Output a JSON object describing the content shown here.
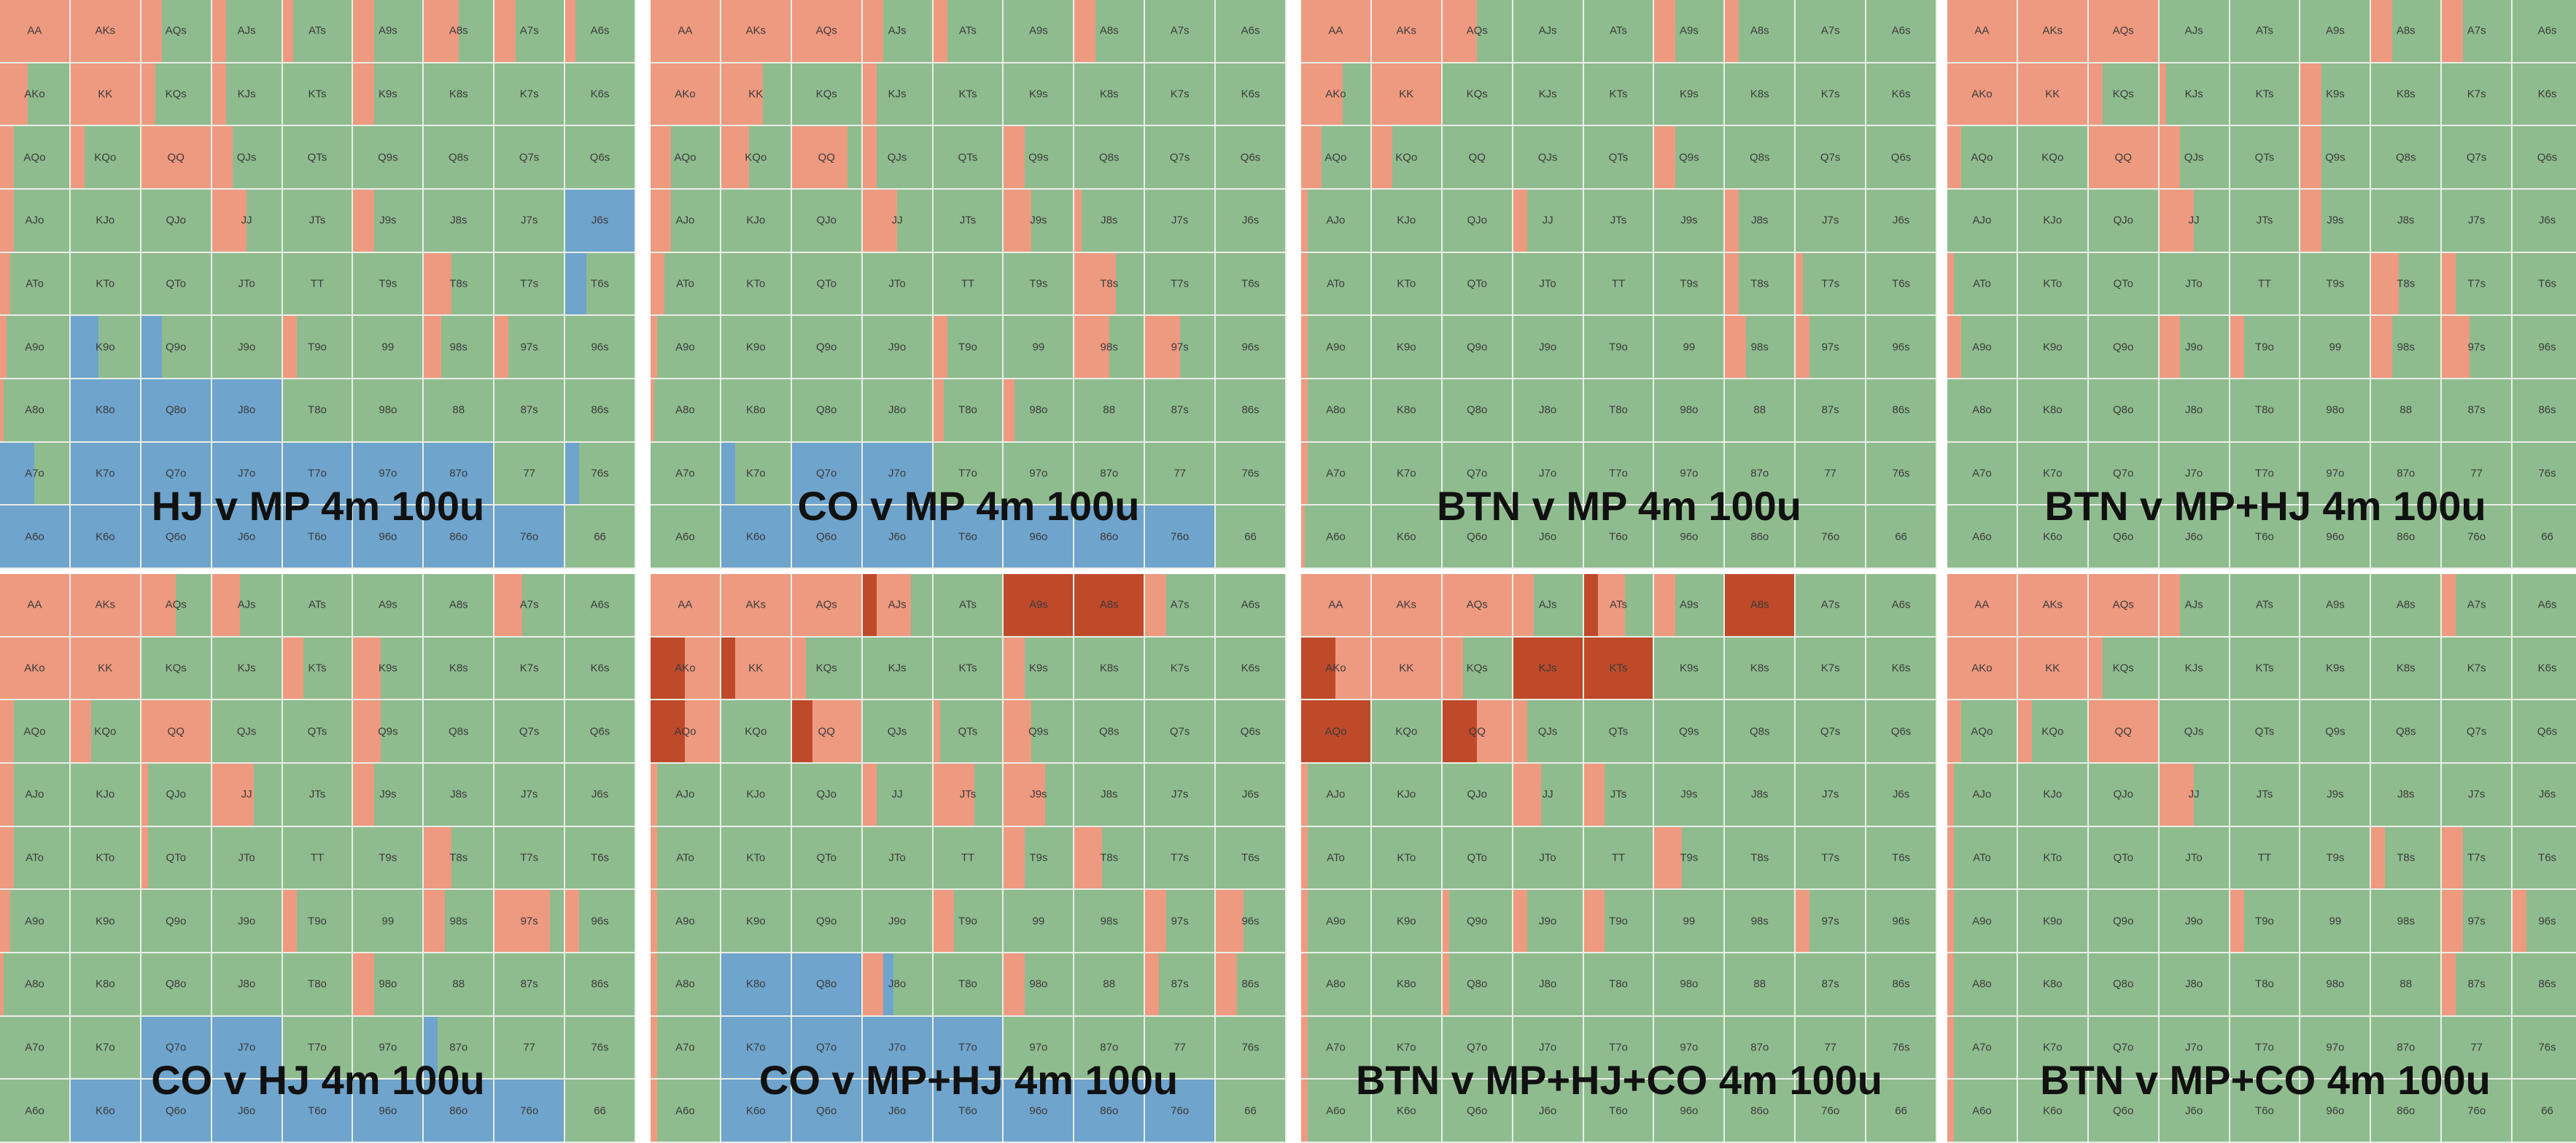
{
  "colors": {
    "fold": "#8fbc8f",
    "raise": "#ee9a80",
    "raise_big": "#bf4a2a",
    "call": "#6fa4cc"
  },
  "hands": [
    [
      "AA",
      "AKs",
      "AQs",
      "AJs",
      "ATs",
      "A9s",
      "A8s",
      "A7s",
      "A6s"
    ],
    [
      "AKo",
      "KK",
      "KQs",
      "KJs",
      "KTs",
      "K9s",
      "K8s",
      "K7s",
      "K6s"
    ],
    [
      "AQo",
      "KQo",
      "QQ",
      "QJs",
      "QTs",
      "Q9s",
      "Q8s",
      "Q7s",
      "Q6s"
    ],
    [
      "AJo",
      "KJo",
      "QJo",
      "JJ",
      "JTs",
      "J9s",
      "J8s",
      "J7s",
      "J6s"
    ],
    [
      "ATo",
      "KTo",
      "QTo",
      "JTo",
      "TT",
      "T9s",
      "T8s",
      "T7s",
      "T6s"
    ],
    [
      "A9o",
      "K9o",
      "Q9o",
      "J9o",
      "T9o",
      "99",
      "98s",
      "97s",
      "96s"
    ],
    [
      "A8o",
      "K8o",
      "Q8o",
      "J8o",
      "T8o",
      "98o",
      "88",
      "87s",
      "86s"
    ],
    [
      "A7o",
      "K7o",
      "Q7o",
      "J7o",
      "T7o",
      "97o",
      "87o",
      "77",
      "76s"
    ],
    [
      "A6o",
      "K6o",
      "Q6o",
      "J6o",
      "T6o",
      "96o",
      "86o",
      "76o",
      "66"
    ]
  ],
  "panels": [
    {
      "title": "HJ v MP 4m 100u",
      "raise": {
        "AA": 1,
        "AKs": 1,
        "AQs": 0.3,
        "A8s": 0.5,
        "A7s": 0.3,
        "AKo": 0.4,
        "KK": 1,
        "K9s": 0.3,
        "AQo": 0.2,
        "KQo": 0.2,
        "QQ": 1,
        "QJs": 0.3,
        "AJo": 0.2,
        "JJ": 0.5,
        "J9s": 0.3,
        "ATo": 0.15,
        "T8s": 0.4,
        "T9o": 0.2,
        "98s": 0.25,
        "97s": 0.2,
        "A9o": 0.1,
        "A8o": 0.05,
        "A9s": 0.3,
        "ATs": 0.15,
        "A6s": 0.15,
        "AJs": 0.2,
        "KJs": 0.2,
        "KQs": 0.2
      },
      "call": {
        "J6s": 1,
        "T6s": 0.3,
        "K9o": 0.4,
        "Q9o": 0.3,
        "K8o": 1,
        "Q8o": 1,
        "J8o": 1,
        "A7o": 0.5,
        "K7o": 1,
        "Q7o": 1,
        "J7o": 1,
        "T7o": 1,
        "97o": 1,
        "87o": 1,
        "76s": 0.2,
        "A6o": 1,
        "K6o": 1,
        "Q6o": 1,
        "J6o": 1,
        "T6o": 1,
        "96o": 1,
        "86o": 1,
        "76o": 1
      }
    },
    {
      "title": "CO v MP 4m 100u",
      "raise": {
        "AA": 1,
        "AKs": 1,
        "AQs": 1,
        "AJs": 0.3,
        "ATs": 0.2,
        "A8s": 0.3,
        "AKo": 1,
        "KK": 0.6,
        "KJs": 0.2,
        "AQo": 0.3,
        "KQo": 0.4,
        "QQ": 0.8,
        "QJs": 0.2,
        "Q9s": 0.3,
        "AJo": 0.3,
        "JJ": 0.5,
        "J9s": 0.4,
        "ATo": 0.2,
        "T8s": 0.6,
        "T9o": 0.2,
        "98s": 0.5,
        "97s": 0.5,
        "A9o": 0.1,
        "A8o": 0.05,
        "T8o": 0.15,
        "98o": 0.15,
        "J8s": 0.1
      },
      "call": {
        "Q7o": 1,
        "J7o": 1,
        "K7o": 0.2,
        "K6o": 1,
        "Q6o": 1,
        "J6o": 1,
        "T6o": 1,
        "96o": 1,
        "86o": 1,
        "76o": 1
      }
    },
    {
      "title": "BTN v MP 4m 100u",
      "raise": {
        "AA": 1,
        "AKs": 1,
        "AQs": 0.5,
        "A9s": 0.3,
        "A8s": 0.2,
        "AKo": 0.6,
        "KK": 1,
        "Q9s": 0.3,
        "AQo": 0.3,
        "KQo": 0.3,
        "JJ": 0.2,
        "J8s": 0.2,
        "T8s": 0.2,
        "T7s": 0.1,
        "98s": 0.3,
        "97s": 0.2,
        "A8o": 0.1,
        "A9o": 0.1,
        "A7o": 0.1,
        "A6o": 0.05,
        "AJo": 0.1,
        "ATo": 0.1
      },
      "call": {}
    },
    {
      "title": "BTN v MP+HJ 4m 100u",
      "raise": {
        "AA": 1,
        "AKs": 1,
        "AQs": 1,
        "A8s": 0.3,
        "A7s": 0.3,
        "AKo": 1,
        "KK": 1,
        "KQs": 0.2,
        "K9s": 0.3,
        "AQo": 0.2,
        "QQ": 1,
        "QJs": 0.3,
        "Q9s": 0.3,
        "JJ": 0.5,
        "J9s": 0.3,
        "ATo": 0.1,
        "T8s": 0.4,
        "T7s": 0.2,
        "98s": 0.3,
        "97s": 0.4,
        "A9o": 0.2,
        "J9o": 0.3,
        "T9o": 0.2,
        "KJs": 0.1
      },
      "call": {}
    },
    {
      "title": "CO v HJ 4m 100u",
      "raise": {
        "AA": 1,
        "AKs": 1,
        "AQs": 0.5,
        "AJs": 0.4,
        "A7s": 0.4,
        "AKo": 1,
        "KK": 1,
        "KTs": 0.3,
        "K9s": 0.4,
        "AQo": 0.2,
        "KQo": 0.3,
        "QQ": 1,
        "Q9s": 0.4,
        "AJo": 0.2,
        "JJ": 0.6,
        "J9s": 0.3,
        "ATo": 0.2,
        "T8s": 0.4,
        "T9o": 0.2,
        "98s": 0.3,
        "97s": 0.8,
        "96s": 0.2,
        "A9o": 0.15,
        "98o": 0.3,
        "A8o": 0.05,
        "QJo": 0.1,
        "QTo": 0.1
      },
      "call": {
        "Q7o": 1,
        "J7o": 1,
        "87o": 0.2,
        "K6o": 1,
        "Q6o": 1,
        "J6o": 1,
        "T6o": 1,
        "96o": 1,
        "86o": 1,
        "76o": 1
      }
    },
    {
      "title": "CO v MP+HJ 4m 100u",
      "raise": {
        "AA": 1,
        "AKs": 1,
        "AQs": 1,
        "AJs": 0.5,
        "A9s": 0.3,
        "A8s": 0.3,
        "A7s": 0.3,
        "AKo": 1,
        "KK": 1,
        "KQs": 0.2,
        "K9s": 0.3,
        "AQo": 1,
        "QQ": 1,
        "Q9s": 0.4,
        "JJ": 0.2,
        "JTs": 0.6,
        "J9s": 0.6,
        "T9s": 0.3,
        "T8s": 0.4,
        "T9o": 0.3,
        "97s": 0.3,
        "96s": 0.4,
        "98o": 0.3,
        "87s": 0.2,
        "86s": 0.3,
        "A9o": 0.1,
        "A8o": 0.1,
        "A7o": 0.1,
        "A6o": 0.1,
        "AJo": 0.1,
        "ATo": 0.1,
        "QTs": 0.1,
        "J8o": 0.3
      },
      "big": {
        "AJs": 0.2,
        "A9s": 1,
        "A8s": 1,
        "AKo": 0.5,
        "KK": 0.2,
        "AQo": 0.5,
        "QQ": 0.3
      },
      "call": {
        "K8o": 1,
        "Q8o": 1,
        "J8o": 0.15,
        "K7o": 1,
        "Q7o": 1,
        "J7o": 1,
        "T7o": 1,
        "K6o": 1,
        "Q6o": 1,
        "J6o": 1,
        "T6o": 1,
        "96o": 1,
        "86o": 1,
        "76o": 1
      }
    },
    {
      "title": "BTN v MP+HJ+CO 4m 100u",
      "raise": {
        "AA": 1,
        "AKs": 1,
        "AQs": 1,
        "AJs": 0.3,
        "ATs": 0.4,
        "A9s": 0.3,
        "AKo": 1,
        "KK": 1,
        "KQs": 0.3,
        "KJs": 1,
        "KTs": 1,
        "AQo": 1,
        "QQ": 1,
        "QJs": 0.2,
        "JJ": 0.4,
        "JTs": 0.3,
        "T9s": 0.4,
        "T9o": 0.3,
        "J9o": 0.2,
        "A9o": 0.1,
        "A8o": 0.1,
        "A7o": 0.1,
        "A6o": 0.1,
        "AJo": 0.1,
        "ATo": 0.1,
        "Q9o": 0.1,
        "Q8o": 0.1,
        "97s": 0.2
      },
      "big": {
        "ATs": 0.2,
        "A8s": 1,
        "AKo": 0.5,
        "KJs": 1,
        "KTs": 1,
        "AQo": 1,
        "QQ": 0.5
      },
      "call": {}
    },
    {
      "title": "BTN v MP+CO 4m 100u",
      "raise": {
        "AA": 1,
        "AKs": 1,
        "AQs": 1,
        "AJs": 0.3,
        "A7s": 0.2,
        "AKo": 1,
        "KK": 1,
        "KQs": 0.2,
        "AQo": 0.2,
        "KQo": 0.2,
        "QQ": 1,
        "JJ": 0.5,
        "ATo": 0.1,
        "T7s": 0.3,
        "T9o": 0.2,
        "97s": 0.3,
        "96s": 0.2,
        "A9o": 0.1,
        "A8o": 0.1,
        "A7o": 0.1,
        "A6o": 0.1,
        "AJo": 0.1,
        "87s": 0.2,
        "T8s": 0.2
      },
      "call": {}
    }
  ]
}
